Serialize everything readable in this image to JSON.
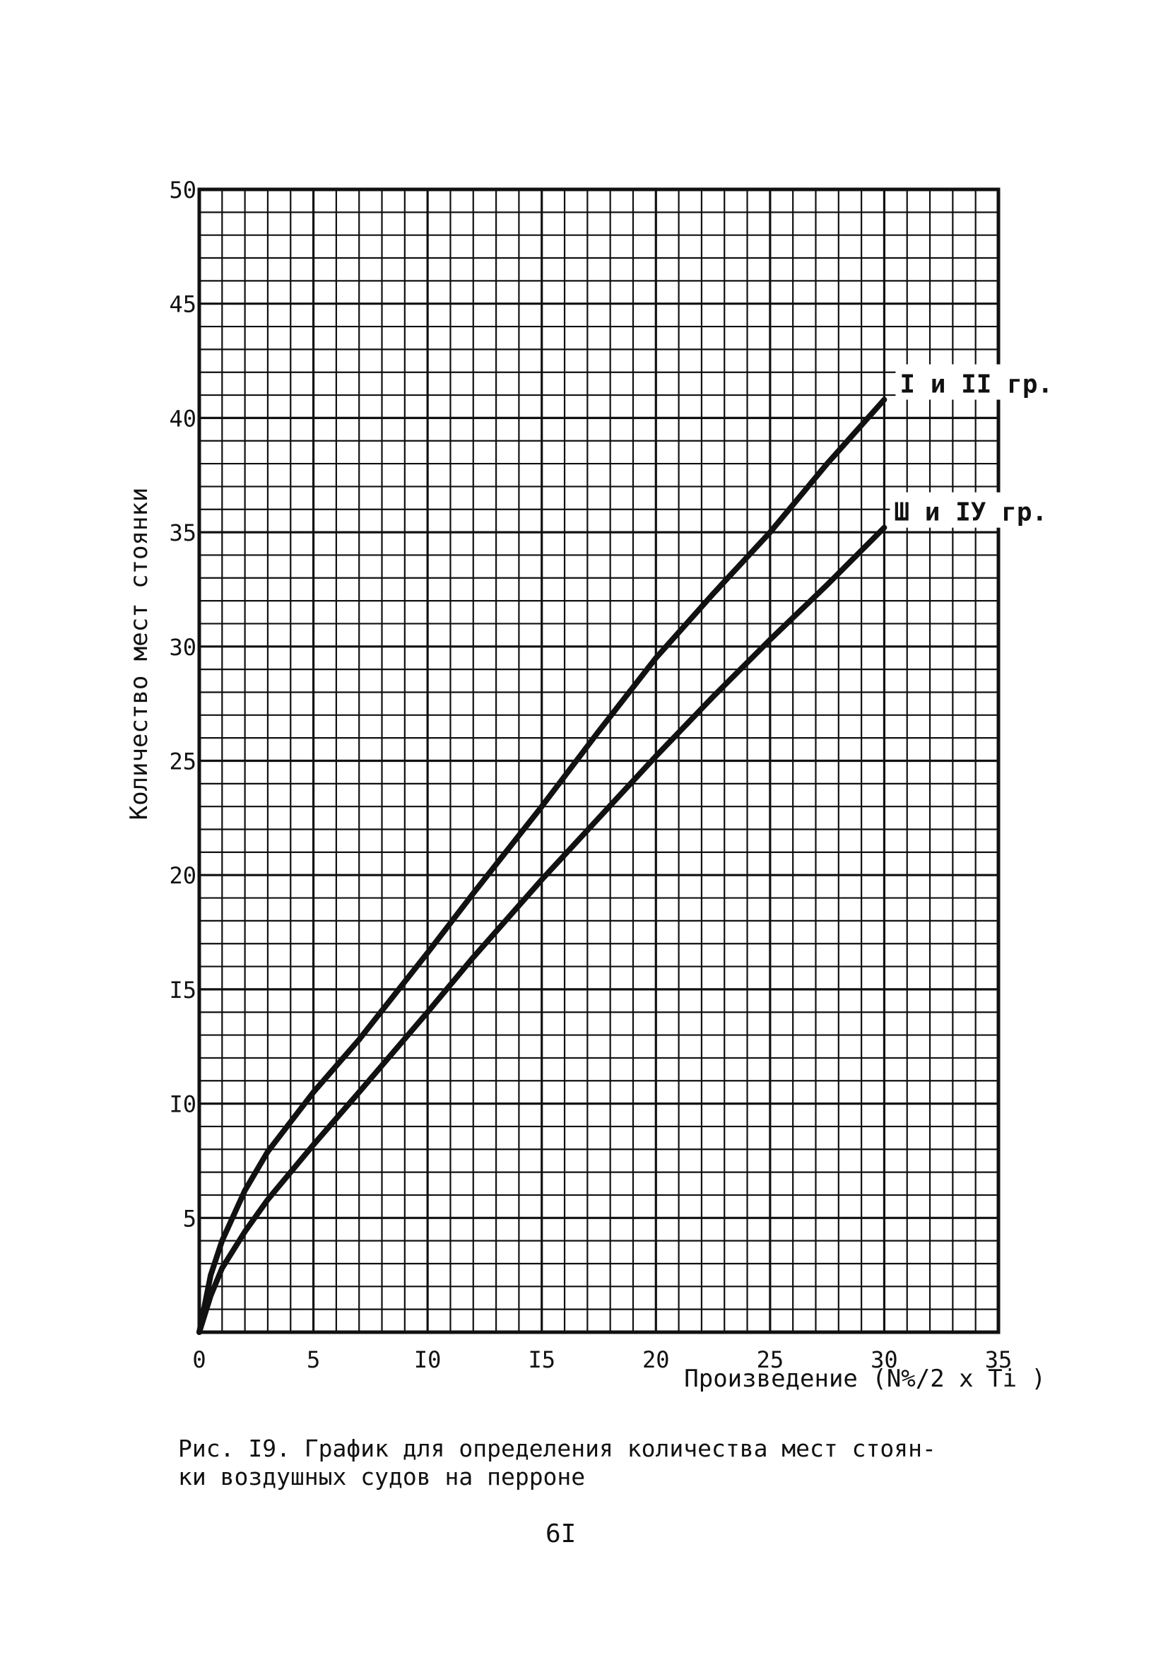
{
  "chart_data": {
    "type": "line",
    "xlabel": "Произведение (N%/2 x Ti )",
    "ylabel": "Количество мест стоянки",
    "xlim": [
      0,
      35
    ],
    "ylim": [
      0,
      50
    ],
    "x_ticks": [
      "0",
      "5",
      "I0",
      "I5",
      "20",
      "25",
      "30",
      "35"
    ],
    "y_ticks": [
      "5",
      "I0",
      "I5",
      "20",
      "25",
      "30",
      "35",
      "40",
      "45",
      "50"
    ],
    "grid": true,
    "series": [
      {
        "name": "I и II гр.",
        "x": [
          0,
          0.5,
          1,
          2,
          3,
          5,
          7,
          10,
          12,
          15,
          17.5,
          20,
          22.5,
          25,
          27.5,
          30
        ],
        "y": [
          0,
          2.5,
          4,
          6.2,
          7.9,
          10.5,
          12.8,
          16.6,
          19.2,
          23,
          26.3,
          29.5,
          32.3,
          35,
          38,
          40.8
        ]
      },
      {
        "name": "Ш и IУ гр.",
        "x": [
          0,
          0.5,
          1,
          2,
          3,
          5,
          7,
          10,
          12,
          15,
          17.5,
          20,
          22.5,
          25,
          27.5,
          30
        ],
        "y": [
          0,
          1.6,
          2.8,
          4.4,
          5.8,
          8.2,
          10.5,
          14,
          16.4,
          19.8,
          22.5,
          25.2,
          27.8,
          30.3,
          32.7,
          35.2
        ]
      }
    ],
    "colors": {
      "line": "#111111",
      "grid": "#111111"
    }
  },
  "caption": {
    "line1": "Рис. I9. График для определения количества мест стоян-",
    "line2": "ки воздушных судов на перроне"
  },
  "page_number": "6I"
}
